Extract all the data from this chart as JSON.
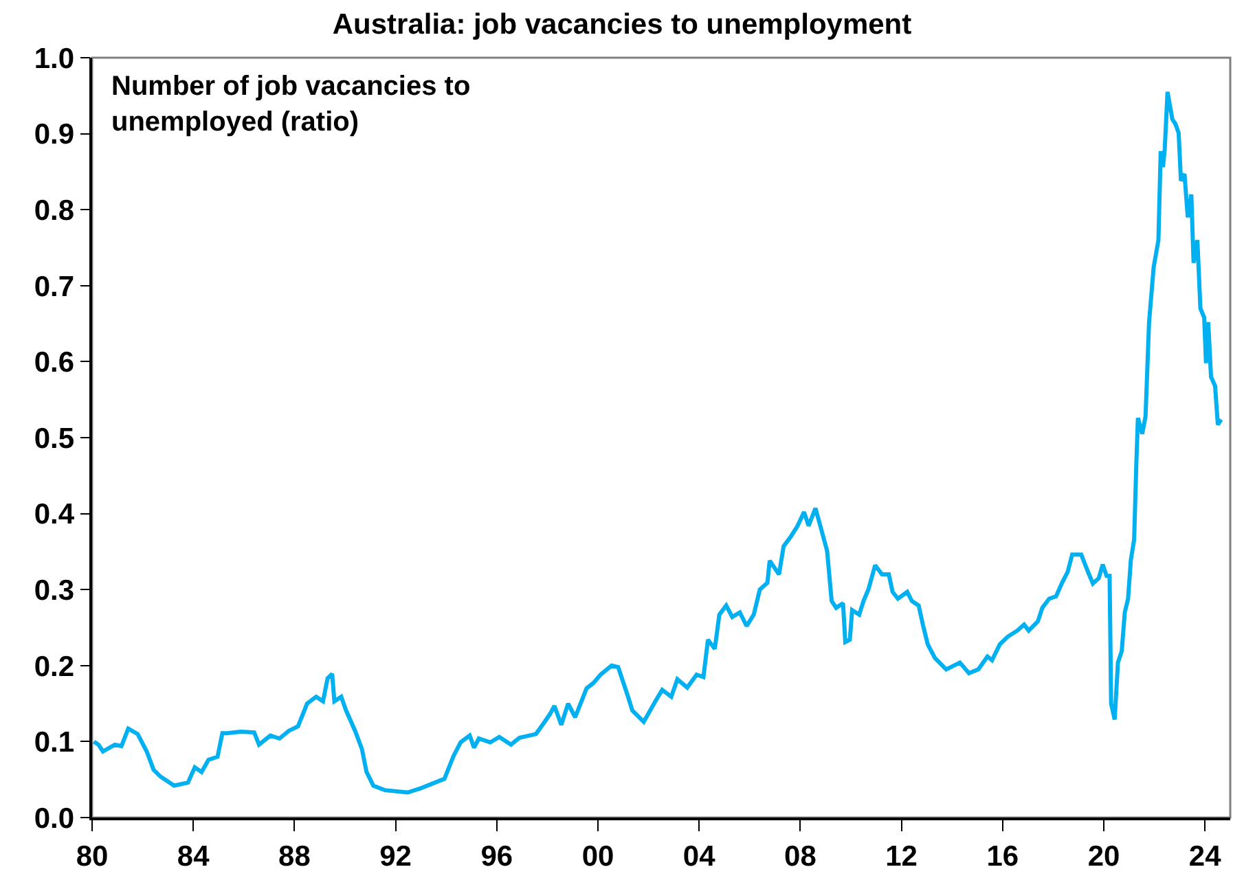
{
  "chart_data": {
    "type": "line",
    "title": "Australia: job vacancies to unemployment",
    "annotations": [
      "Number of job vacancies to\nunemployed (ratio)"
    ],
    "x": [
      1980.07,
      1980.25,
      1980.43,
      1980.9,
      1981.16,
      1981.43,
      1981.8,
      1982.16,
      1982.43,
      1982.7,
      1983.24,
      1983.79,
      1984.06,
      1984.33,
      1984.6,
      1984.96,
      1985.15,
      1985.33,
      1985.87,
      1986.41,
      1986.6,
      1987.05,
      1987.41,
      1987.77,
      1988.14,
      1988.5,
      1988.86,
      1989.13,
      1989.31,
      1989.49,
      1989.58,
      1989.85,
      1990.04,
      1990.4,
      1990.67,
      1990.85,
      1991.12,
      1991.58,
      1992.48,
      1993.03,
      1993.93,
      1994.29,
      1994.57,
      1994.93,
      1995.1,
      1995.29,
      1995.74,
      1996.1,
      1996.56,
      1996.9,
      1997.55,
      1997.83,
      1998.1,
      1998.28,
      1998.55,
      1998.82,
      1999.1,
      1999.55,
      1999.82,
      2000.1,
      2000.54,
      2000.8,
      2001.18,
      2001.36,
      2001.81,
      2002.27,
      2002.54,
      2002.9,
      2003.14,
      2003.53,
      2003.9,
      2004.17,
      2004.35,
      2004.62,
      2004.8,
      2005.07,
      2005.31,
      2005.61,
      2005.88,
      2006.16,
      2006.4,
      2006.7,
      2006.79,
      2007.16,
      2007.34,
      2007.61,
      2007.88,
      2008.15,
      2008.33,
      2008.6,
      2008.79,
      2009.06,
      2009.24,
      2009.42,
      2009.69,
      2009.78,
      2009.96,
      2010.05,
      2010.33,
      2010.5,
      2010.69,
      2010.96,
      2011.23,
      2011.5,
      2011.65,
      2011.86,
      2012.23,
      2012.41,
      2012.68,
      2012.86,
      2013.04,
      2013.32,
      2013.77,
      2014.31,
      2014.67,
      2015.04,
      2015.4,
      2015.58,
      2015.89,
      2016.2,
      2016.58,
      2016.85,
      2017.03,
      2017.39,
      2017.57,
      2017.84,
      2018.11,
      2018.35,
      2018.57,
      2018.75,
      2019.11,
      2019.38,
      2019.57,
      2019.8,
      2019.96,
      2020.11,
      2020.23,
      2020.29,
      2020.43,
      2020.56,
      2020.71,
      2020.83,
      2020.96,
      2021.07,
      2021.2,
      2021.29,
      2021.35,
      2021.52,
      2021.65,
      2021.79,
      2021.97,
      2022.16,
      2022.25,
      2022.34,
      2022.41,
      2022.52,
      2022.71,
      2022.83,
      2022.96,
      2023.05,
      2023.19,
      2023.32,
      2023.46,
      2023.55,
      2023.7,
      2023.82,
      2023.97,
      2024.04,
      2024.13,
      2024.24,
      2024.4,
      2024.51,
      2024.64
    ],
    "series": [
      {
        "color": "#00b0f0",
        "values": [
          0.1,
          0.096,
          0.087,
          0.096,
          0.094,
          0.117,
          0.11,
          0.087,
          0.063,
          0.054,
          0.042,
          0.046,
          0.066,
          0.06,
          0.076,
          0.08,
          0.111,
          0.111,
          0.113,
          0.112,
          0.096,
          0.108,
          0.104,
          0.114,
          0.12,
          0.15,
          0.159,
          0.153,
          0.183,
          0.189,
          0.153,
          0.159,
          0.141,
          0.114,
          0.09,
          0.06,
          0.042,
          0.036,
          0.033,
          0.039,
          0.051,
          0.081,
          0.099,
          0.108,
          0.092,
          0.104,
          0.099,
          0.106,
          0.096,
          0.105,
          0.11,
          0.123,
          0.136,
          0.147,
          0.122,
          0.15,
          0.132,
          0.17,
          0.177,
          0.188,
          0.2,
          0.198,
          0.16,
          0.141,
          0.126,
          0.153,
          0.168,
          0.159,
          0.182,
          0.171,
          0.188,
          0.185,
          0.234,
          0.222,
          0.267,
          0.279,
          0.264,
          0.27,
          0.252,
          0.267,
          0.3,
          0.309,
          0.338,
          0.32,
          0.357,
          0.369,
          0.383,
          0.402,
          0.384,
          0.407,
          0.384,
          0.351,
          0.285,
          0.276,
          0.282,
          0.231,
          0.234,
          0.273,
          0.267,
          0.285,
          0.3,
          0.332,
          0.32,
          0.32,
          0.297,
          0.288,
          0.297,
          0.285,
          0.279,
          0.252,
          0.228,
          0.21,
          0.195,
          0.204,
          0.19,
          0.195,
          0.212,
          0.207,
          0.228,
          0.238,
          0.246,
          0.254,
          0.246,
          0.258,
          0.276,
          0.288,
          0.291,
          0.309,
          0.323,
          0.346,
          0.346,
          0.323,
          0.308,
          0.315,
          0.333,
          0.318,
          0.318,
          0.15,
          0.129,
          0.204,
          0.219,
          0.27,
          0.288,
          0.339,
          0.366,
          0.47,
          0.526,
          0.505,
          0.528,
          0.652,
          0.724,
          0.76,
          0.877,
          0.856,
          0.88,
          0.955,
          0.919,
          0.913,
          0.901,
          0.838,
          0.847,
          0.79,
          0.82,
          0.73,
          0.76,
          0.67,
          0.658,
          0.598,
          0.652,
          0.58,
          0.568,
          0.517,
          0.524
        ]
      }
    ],
    "xlim": [
      1980,
      2025
    ],
    "xticks": [
      {
        "value": 1980,
        "label": "80"
      },
      {
        "value": 1984,
        "label": "84"
      },
      {
        "value": 1988,
        "label": "88"
      },
      {
        "value": 1992,
        "label": "92"
      },
      {
        "value": 1996,
        "label": "96"
      },
      {
        "value": 2000,
        "label": "00"
      },
      {
        "value": 2004,
        "label": "04"
      },
      {
        "value": 2008,
        "label": "08"
      },
      {
        "value": 2012,
        "label": "12"
      },
      {
        "value": 2016,
        "label": "16"
      },
      {
        "value": 2020,
        "label": "20"
      },
      {
        "value": 2024,
        "label": "24"
      }
    ],
    "ylim": [
      0,
      1
    ],
    "yticks": [
      {
        "value": 0,
        "label": "0.0"
      },
      {
        "value": 0.1,
        "label": "0.1"
      },
      {
        "value": 0.2,
        "label": "0.2"
      },
      {
        "value": 0.3,
        "label": "0.3"
      },
      {
        "value": 0.4,
        "label": "0.4"
      },
      {
        "value": 0.5,
        "label": "0.5"
      },
      {
        "value": 0.6,
        "label": "0.6"
      },
      {
        "value": 0.7,
        "label": "0.7"
      },
      {
        "value": 0.8,
        "label": "0.8"
      },
      {
        "value": 0.9,
        "label": "0.9"
      },
      {
        "value": 1.0,
        "label": "1.0"
      }
    ],
    "grid": false,
    "marker": "none",
    "line_style": "solid"
  }
}
